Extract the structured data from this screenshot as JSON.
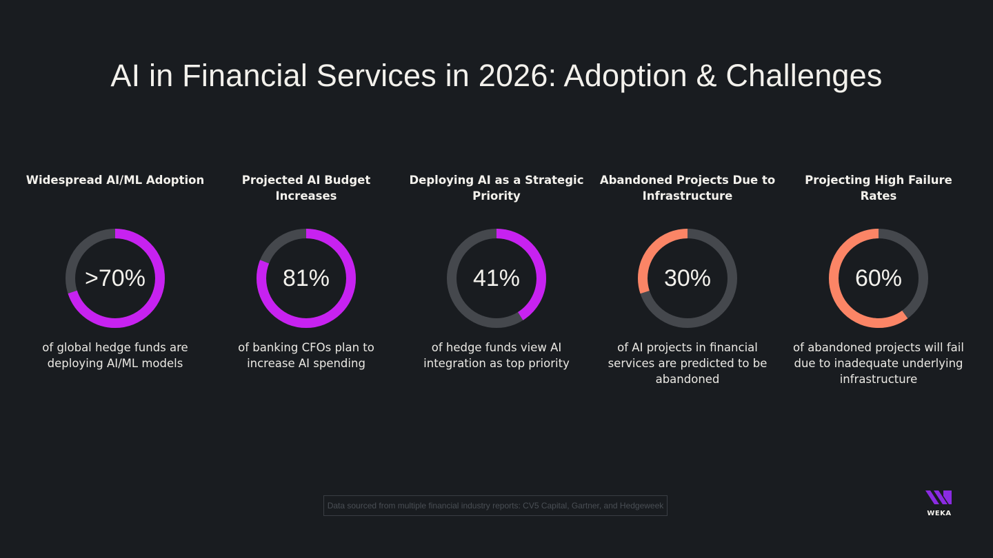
{
  "title": "AI in Financial Services in 2026: Adoption & Challenges",
  "colors": {
    "background": "#191c20",
    "track": "#45484d",
    "purple": "#c722f0",
    "orange": "#fb8566",
    "text": "#f3f1ec",
    "logo": "#8a2be2"
  },
  "chart_data": {
    "type": "donut",
    "title": "AI in Financial Services in 2026: Adoption & Challenges",
    "series": [
      {
        "heading": "Widespread AI/ML Adoption",
        "label": ">70%",
        "value": 70,
        "color": "purple",
        "direction": "clockwise",
        "description": "of global hedge funds are deploying AI/ML models"
      },
      {
        "heading": "Projected AI Budget Increases",
        "label": "81%",
        "value": 81,
        "color": "purple",
        "direction": "clockwise",
        "description": "of banking CFOs plan to increase AI spending"
      },
      {
        "heading": "Deploying AI as a Strategic Priority",
        "label": "41%",
        "value": 41,
        "color": "purple",
        "direction": "clockwise",
        "description": "of hedge funds view AI integration as top priority"
      },
      {
        "heading": "Abandoned Projects Due to Infrastructure",
        "label": "30%",
        "value": 30,
        "color": "orange",
        "direction": "counterclockwise",
        "description": "of AI projects in financial services are predicted to be abandoned"
      },
      {
        "heading": "Projecting High Failure Rates",
        "label": "60%",
        "value": 60,
        "color": "orange",
        "direction": "counterclockwise",
        "description": "of abandoned projects will fail due to inadequate underlying infrastructure"
      }
    ]
  },
  "footer": {
    "source": "Data sourced from multiple financial industry reports: CV5 Capital, Gartner, and Hedgeweek"
  },
  "logo": {
    "text": "WEKA",
    "icon": "weka-logo-icon"
  }
}
